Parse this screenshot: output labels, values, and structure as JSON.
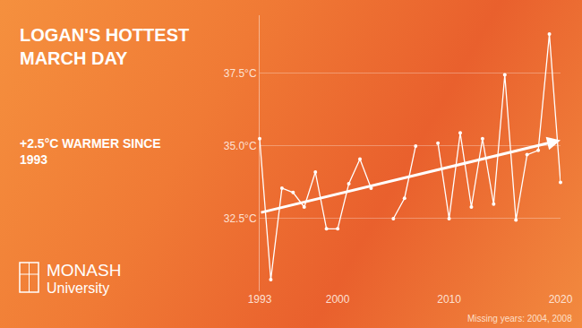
{
  "chart_data": {
    "type": "line",
    "title": "LOGAN'S HOTTEST MARCH DAY",
    "subtitle": "+2.5°C WARMER SINCE 1993",
    "annotations": [
      "MONASH",
      "University",
      "Missing years: 2004, 2008"
    ],
    "x": [
      1993,
      1994,
      1995,
      1996,
      1997,
      1998,
      1999,
      2000,
      2001,
      2002,
      2003,
      2004,
      2005,
      2006,
      2007,
      2008,
      2009,
      2010,
      2011,
      2012,
      2013,
      2014,
      2015,
      2016,
      2017,
      2018,
      2019,
      2020
    ],
    "values": [
      35.25,
      30.4,
      33.55,
      33.4,
      32.9,
      34.1,
      32.15,
      32.15,
      33.7,
      34.55,
      33.55,
      null,
      32.5,
      33.2,
      35.0,
      null,
      35.1,
      32.5,
      35.45,
      32.9,
      35.25,
      33.0,
      37.45,
      32.45,
      34.7,
      34.85,
      38.85,
      33.75
    ],
    "color": "#ffffff",
    "marker": "circle",
    "line_style": "solid",
    "trend_line": {
      "x": [
        1993,
        2020
      ],
      "values": [
        32.7,
        35.2
      ]
    },
    "xlim": [
      1993,
      2020
    ],
    "xticks": [
      1993,
      2000,
      2010,
      2020
    ],
    "ylim": [
      30,
      39.5
    ],
    "yticks": [
      {
        "value": 32.5,
        "label": "32.5°C"
      },
      {
        "value": 35.0,
        "label": "35.0°C"
      },
      {
        "value": 37.5,
        "label": "37.5°C"
      }
    ],
    "grid": true
  }
}
